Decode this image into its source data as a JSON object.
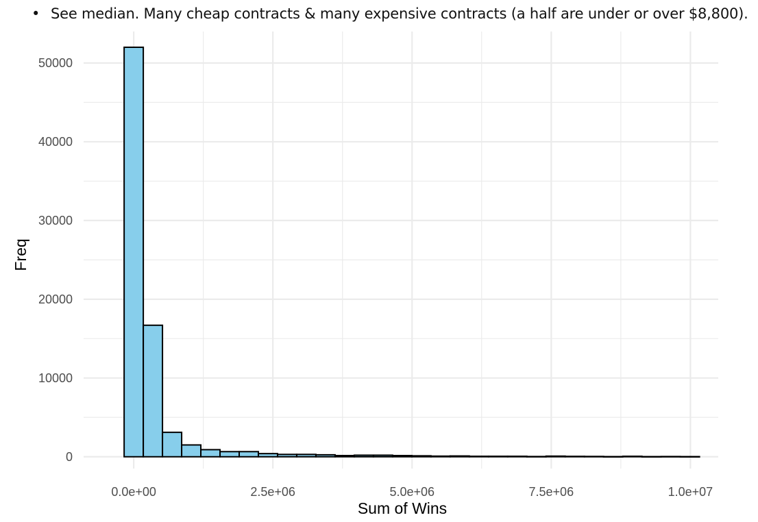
{
  "note": {
    "bullet": "•",
    "text": "See median. Many cheap contracts & many expensive contracts (a half are under or over $8,800)."
  },
  "colors": {
    "bar_fill": "#87CEEB",
    "bar_stroke": "#000000",
    "grid": "#ebebeb"
  },
  "chart_data": {
    "type": "bar",
    "title": "",
    "xlabel": "Sum of Wins",
    "ylabel": "Freq",
    "xlim": [
      -900000,
      10500000
    ],
    "ylim": [
      -1500,
      54000
    ],
    "bin_width": 344500,
    "first_bin_start": -172250,
    "x_ticks": [
      0,
      2500000,
      5000000,
      7500000,
      10000000
    ],
    "x_tick_labels": [
      "0.0e+00",
      "2.5e+06",
      "5.0e+06",
      "7.5e+06",
      "1.0e+07"
    ],
    "y_ticks": [
      0,
      10000,
      20000,
      30000,
      40000,
      50000
    ],
    "y_tick_labels": [
      "0",
      "10000",
      "20000",
      "30000",
      "40000",
      "50000"
    ],
    "values": [
      52000,
      16700,
      3100,
      1500,
      900,
      650,
      650,
      400,
      300,
      300,
      250,
      150,
      200,
      200,
      150,
      120,
      80,
      100,
      60,
      60,
      60,
      30,
      80,
      50,
      40,
      20,
      60,
      20,
      30,
      20
    ],
    "grid": true,
    "legend": "none"
  }
}
